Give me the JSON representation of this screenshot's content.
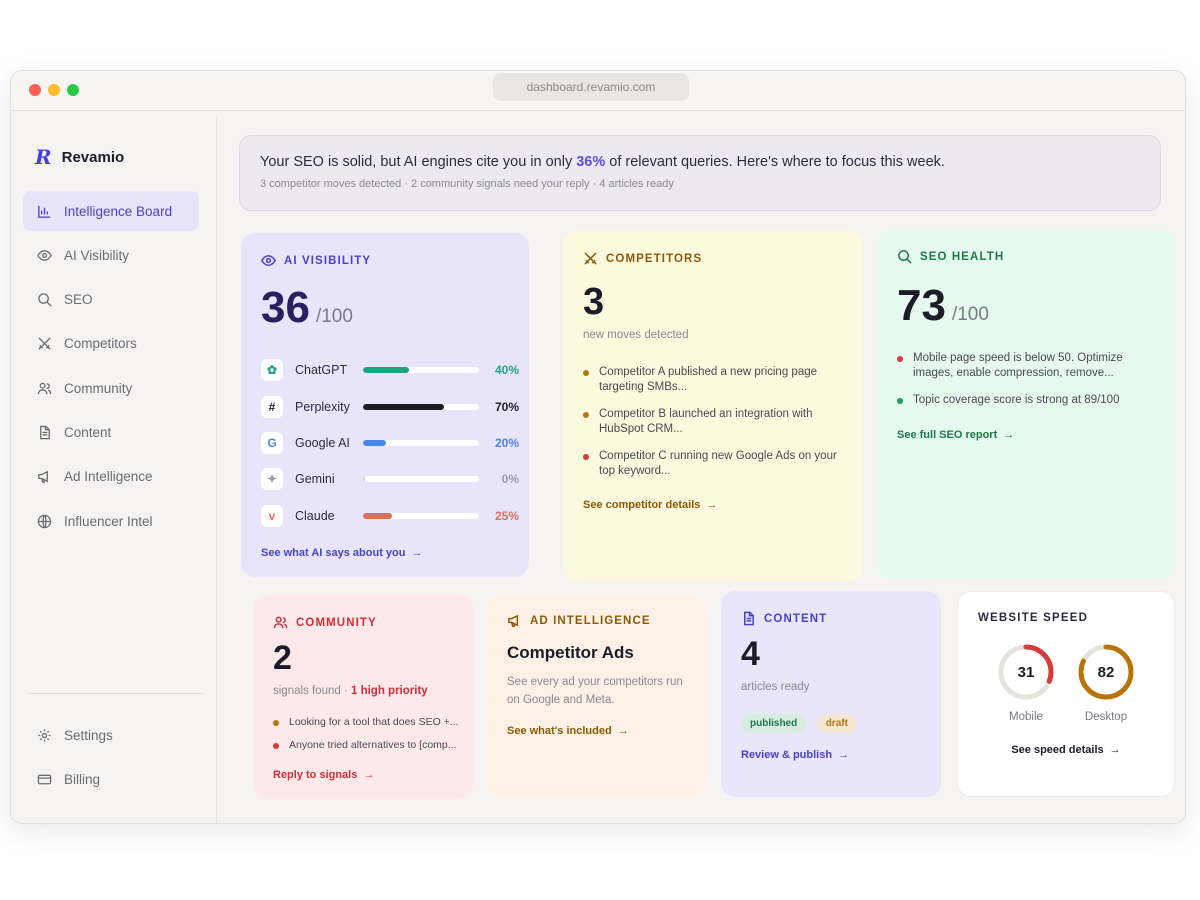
{
  "window": {
    "url": "dashboard.revamio.com"
  },
  "brand": {
    "name": "Revamio"
  },
  "sidebar": {
    "items": [
      {
        "label": "Intelligence Board",
        "icon": "bar-chart-icon",
        "active": true
      },
      {
        "label": "AI Visibility",
        "icon": "eye-icon"
      },
      {
        "label": "SEO",
        "icon": "search-icon"
      },
      {
        "label": "Competitors",
        "icon": "swords-icon"
      },
      {
        "label": "Community",
        "icon": "users-icon"
      },
      {
        "label": "Content",
        "icon": "document-icon"
      },
      {
        "label": "Ad Intelligence",
        "icon": "megaphone-icon"
      },
      {
        "label": "Influencer Intel",
        "icon": "globe-icon"
      }
    ],
    "bottom": [
      {
        "label": "Settings",
        "icon": "gear-icon"
      },
      {
        "label": "Billing",
        "icon": "card-icon"
      }
    ]
  },
  "banner": {
    "pre": "Your SEO is solid, but AI engines cite you in only ",
    "highlight": "36%",
    "post": " of relevant queries. Here's where to focus this week.",
    "sub": "3 competitor moves detected · 2 community signals need your reply · 4 articles ready"
  },
  "ai_visibility": {
    "title": "AI VISIBILITY",
    "score": "36",
    "denom": "/100",
    "engines": [
      {
        "name": "ChatGPT",
        "pct_label": "40%",
        "value": 0.4,
        "color": "#1fa37f",
        "icon": "chatgpt-icon",
        "glyph": "✿"
      },
      {
        "name": "Perplexity",
        "pct_label": "70%",
        "value": 0.7,
        "color": "#1c1c24",
        "icon": "perplexity-icon",
        "glyph": "#"
      },
      {
        "name": "Google AI",
        "pct_label": "20%",
        "value": 0.2,
        "color": "#4a86e8",
        "icon": "google-icon",
        "glyph": "G"
      },
      {
        "name": "Gemini",
        "pct_label": "0%",
        "value": 0.0,
        "color": "#9a9aa2",
        "icon": "gemini-icon",
        "glyph": "✦"
      },
      {
        "name": "Claude",
        "pct_label": "25%",
        "value": 0.25,
        "color": "#d9705b",
        "icon": "claude-icon",
        "glyph": "v"
      }
    ],
    "link": "See what AI says about you"
  },
  "competitors": {
    "title": "COMPETITORS",
    "count": "3",
    "caption": "new moves detected",
    "items": [
      {
        "text": "Competitor A published a new pricing page targeting SMBs...",
        "color": "#b07a10"
      },
      {
        "text": "Competitor B launched an integration with HubSpot CRM...",
        "color": "#b07a10"
      },
      {
        "text": "Competitor C running new Google Ads on your top keyword...",
        "color": "#d63b3b"
      }
    ],
    "link": "See competitor details"
  },
  "seo_health": {
    "title": "SEO HEALTH",
    "score": "73",
    "denom": "/100",
    "items": [
      {
        "text": "Mobile page speed is below 50. Optimize images, enable compression, remove...",
        "color": "#d63b3b"
      },
      {
        "text": "Topic coverage score is strong at 89/100",
        "color": "#1f9a5c"
      }
    ],
    "link": "See full SEO report"
  },
  "community": {
    "title": "COMMUNITY",
    "count": "2",
    "caption_pre": "signals found · ",
    "caption_hl": "1 high priority",
    "items": [
      {
        "text": "Looking for a tool that does SEO +...",
        "color": "#b07a10"
      },
      {
        "text": "Anyone tried alternatives to [comp...",
        "color": "#d63b3b"
      }
    ],
    "link": "Reply to signals"
  },
  "ad_intelligence": {
    "title": "AD INTELLIGENCE",
    "heading": "Competitor Ads",
    "desc": "See every ad your competitors run on Google and Meta.",
    "link": "See what's included"
  },
  "content": {
    "title": "CONTENT",
    "count": "4",
    "caption": "articles ready",
    "pills": [
      "published",
      "draft"
    ],
    "link": "Review & publish"
  },
  "speed": {
    "title": "WEBSITE SPEED",
    "mobile": {
      "value": "31",
      "score": 31,
      "label": "Mobile",
      "color": "#d63b3b"
    },
    "desktop": {
      "value": "82",
      "score": 82,
      "label": "Desktop",
      "color": "#b8740a"
    },
    "link": "See speed details"
  },
  "arrow": "→"
}
